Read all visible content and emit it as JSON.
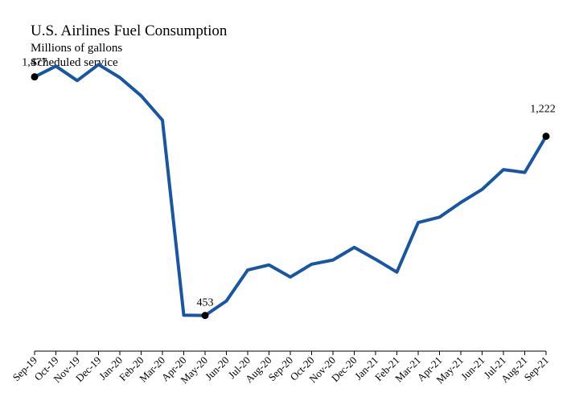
{
  "chart_data": {
    "type": "line",
    "title": "U.S. Airlines Fuel Consumption",
    "subtitles": [
      "Millions of gallons",
      "Scheduled service"
    ],
    "xlabel": "",
    "ylabel": "",
    "ylim": [
      300,
      1600
    ],
    "grid": false,
    "legend": "none",
    "categories": [
      "Sep-19",
      "Oct-19",
      "Nov-19",
      "Dec-19",
      "Jan-20",
      "Feb-20",
      "Mar-20",
      "Apr-20",
      "May-20",
      "Jun-20",
      "Jul-20",
      "Aug-20",
      "Sep-20",
      "Oct-20",
      "Nov-20",
      "Dec-20",
      "Jan-21",
      "Feb-21",
      "Mar-21",
      "Apr-21",
      "May-21",
      "Jun-21",
      "Jul-21",
      "Aug-21",
      "Sep-21"
    ],
    "series": [
      {
        "values": [
          1477,
          1523,
          1461,
          1530,
          1474,
          1396,
          1291,
          454,
          453,
          515,
          648,
          670,
          618,
          673,
          691,
          745,
          694,
          639,
          852,
          875,
          938,
          994,
          1079,
          1067,
          1222
        ],
        "color": "#1856a3"
      }
    ],
    "data_labels": [
      {
        "index": 0,
        "text": "1,477"
      },
      {
        "index": 8,
        "text": "453"
      },
      {
        "index": 24,
        "text": "1,222"
      }
    ]
  }
}
